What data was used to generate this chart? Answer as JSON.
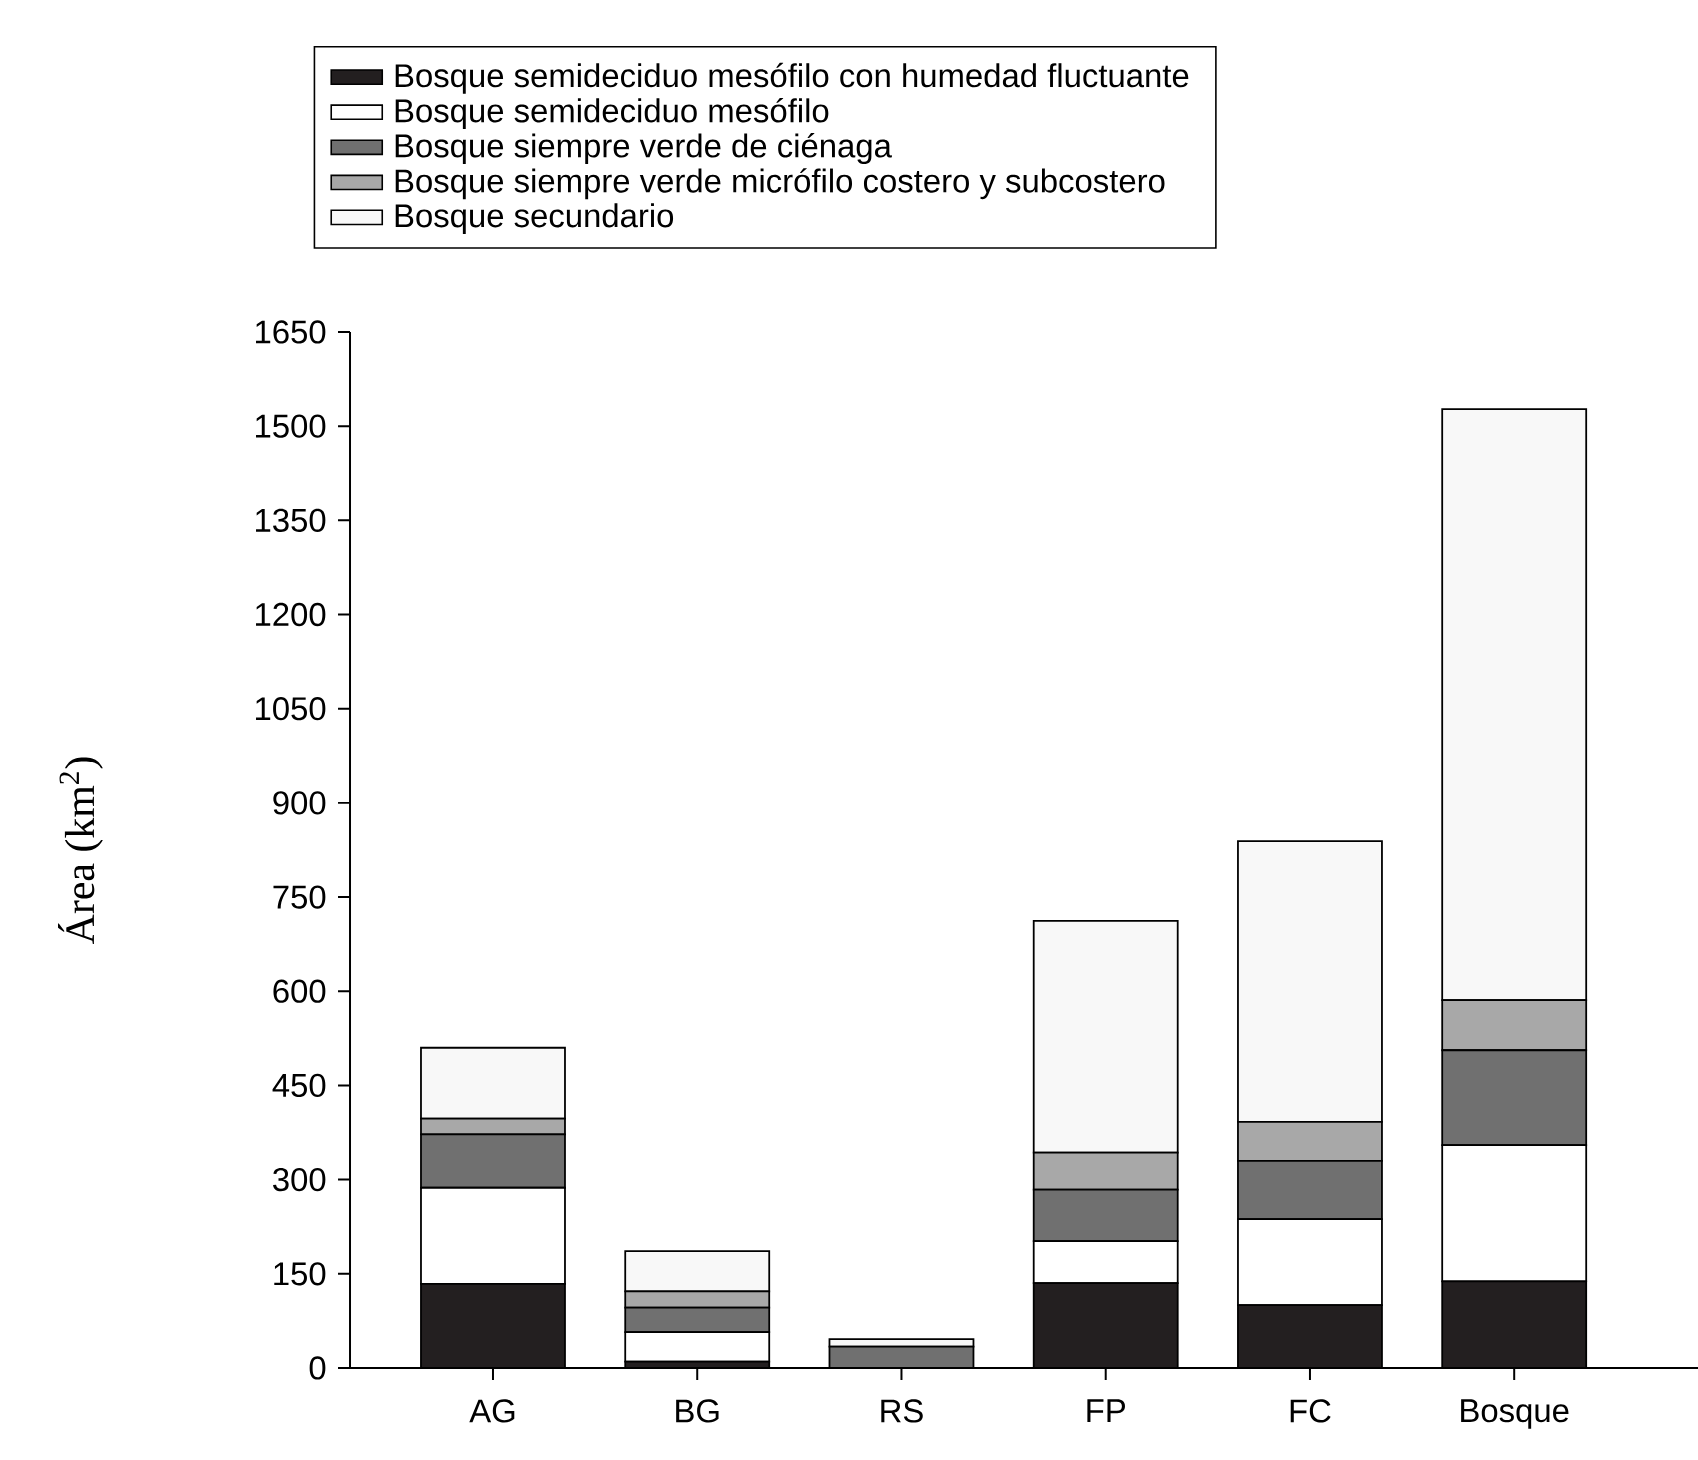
{
  "chart_data": {
    "type": "bar",
    "stacked": true,
    "ylabel": "Área (km$^{2}$)",
    "categories": [
      "AG",
      "BG",
      "RS",
      "FP",
      "FC",
      "Bosque"
    ],
    "series": [
      {
        "name": "Bosque semideciduo mesófilo con humedad fluctuante",
        "color": "#231f20",
        "values": [
          134,
          10,
          0,
          135,
          100,
          138
        ]
      },
      {
        "name": "Bosque semideciduo mesófilo",
        "color": "#ffffff",
        "values": [
          153,
          47,
          0,
          67,
          137,
          217
        ]
      },
      {
        "name": "Bosque siempre verde de ciénaga",
        "color": "#707070",
        "values": [
          85,
          39,
          34,
          82,
          93,
          151
        ]
      },
      {
        "name": "Bosque siempre verde micrófilo costero y subcostero",
        "color": "#a8a8a8",
        "values": [
          25,
          26,
          0,
          59,
          62,
          80
        ]
      },
      {
        "name": "Bosque secundario",
        "color": "#f8f8f8",
        "values": [
          113,
          64,
          12,
          369,
          447,
          941
        ]
      }
    ],
    "ylim": [
      0,
      1650
    ],
    "yticks": [
      0,
      150,
      300,
      450,
      600,
      750,
      900,
      1050,
      1200,
      1350,
      1500,
      1650
    ],
    "legend": "top",
    "grid": false
  }
}
